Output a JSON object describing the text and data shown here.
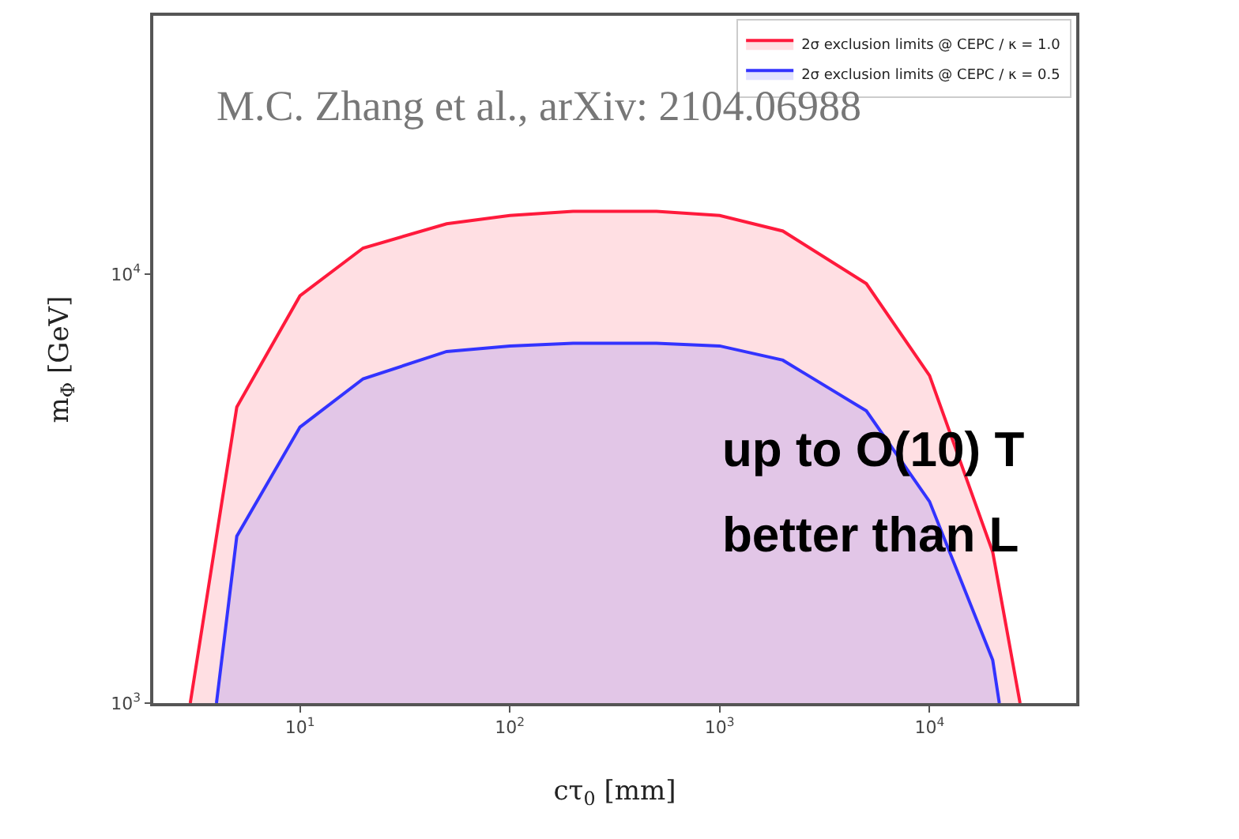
{
  "chart_data": {
    "type": "area",
    "xlabel": "cτ$_{0}$ [mm]",
    "ylabel": "m$_{Φ}$ [GeV]",
    "log": "xy",
    "xlim": [
      2,
      50000
    ],
    "ylim": [
      1000,
      40000
    ],
    "xticks": [
      {
        "value": 10,
        "label": "10$^{1}$"
      },
      {
        "value": 100,
        "label": "10$^{2}$"
      },
      {
        "value": 1000,
        "label": "10$^{3}$"
      },
      {
        "value": 10000,
        "label": "10$^{4}$"
      }
    ],
    "yticks": [
      {
        "value": 1000,
        "label": "10$^{3}$"
      },
      {
        "value": 10000,
        "label": "10$^{4}$"
      }
    ],
    "grid": false,
    "legend": "top right",
    "series": [
      {
        "name": "2σ exclusion limits @ CEPC / κ = 1.0",
        "color": "#ff1a3c",
        "x": [
          3,
          5,
          10,
          20,
          50,
          100,
          200,
          500,
          1000,
          2000,
          5000,
          10000,
          20000,
          27000
        ],
        "values": [
          1000,
          4900,
          8900,
          11500,
          13100,
          13700,
          14000,
          14000,
          13700,
          12600,
          9500,
          5800,
          2250,
          1000
        ]
      },
      {
        "name": "2σ exclusion limits @ CEPC / κ = 0.5",
        "color": "#3333ff",
        "x": [
          4,
          5,
          10,
          20,
          50,
          100,
          200,
          500,
          1000,
          2000,
          5000,
          10000,
          20000,
          21500
        ],
        "values": [
          1000,
          2450,
          4400,
          5700,
          6600,
          6800,
          6900,
          6900,
          6800,
          6300,
          4800,
          2950,
          1260,
          1000
        ]
      }
    ],
    "annotations": [
      "M.C. Zhang et al., arXiv: 2104.06988",
      "up to O(10) T",
      "better than L"
    ]
  }
}
